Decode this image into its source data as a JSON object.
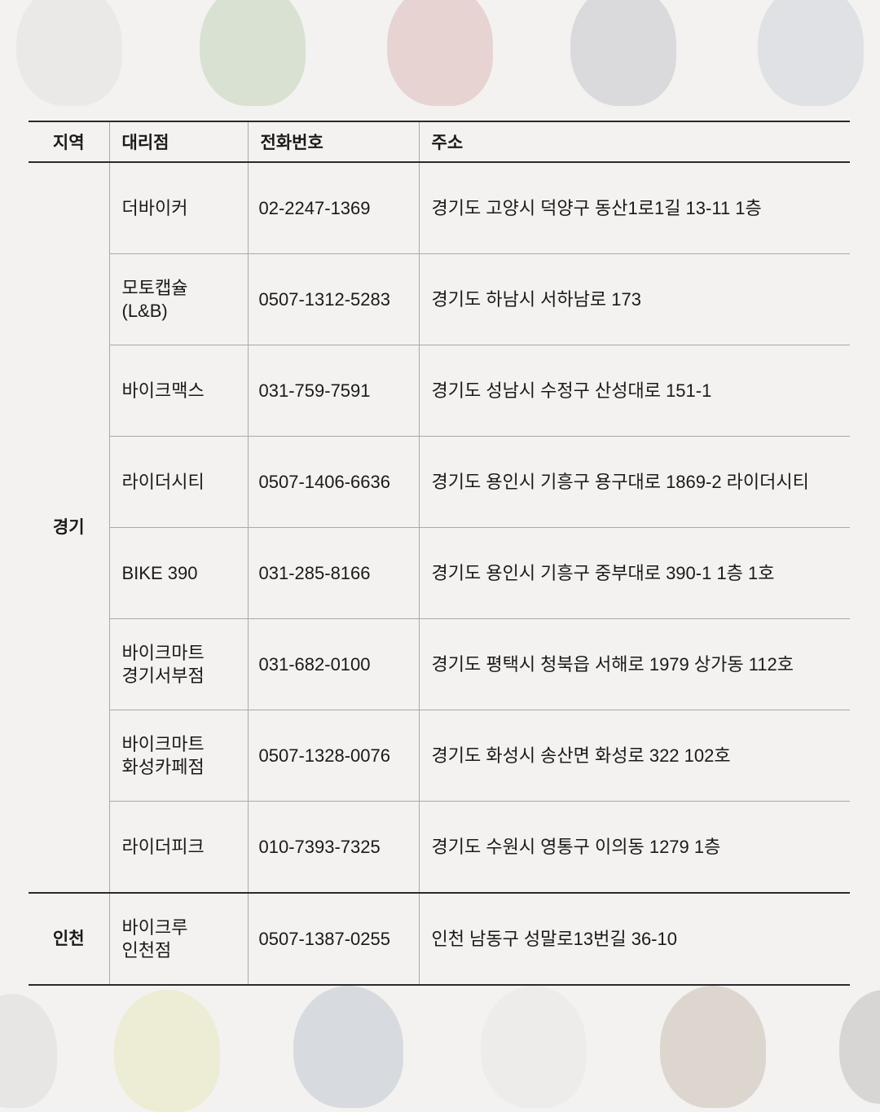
{
  "header": {
    "region": "지역",
    "dealer": "대리점",
    "phone": "전화번호",
    "address": "주소"
  },
  "groups": [
    {
      "region": "경기",
      "rows": [
        {
          "dealer": "더바이커",
          "phone": "02-2247-1369",
          "address": "경기도 고양시 덕양구 동산1로1길 13-11 1층"
        },
        {
          "dealer": "모토캡슐\n(L&B)",
          "phone": "0507-1312-5283",
          "address": "경기도 하남시 서하남로 173"
        },
        {
          "dealer": "바이크맥스",
          "phone": "031-759-7591",
          "address": "경기도 성남시 수정구 산성대로 151-1"
        },
        {
          "dealer": "라이더시티",
          "phone": "0507-1406-6636",
          "address": "경기도 용인시 기흥구 용구대로 1869-2 라이더시티"
        },
        {
          "dealer": "BIKE 390",
          "phone": "031-285-8166",
          "address": "경기도 용인시 기흥구 중부대로 390-1 1층 1호"
        },
        {
          "dealer": "바이크마트\n경기서부점",
          "phone": "031-682-0100",
          "address": "경기도 평택시 청북읍 서해로 1979 상가동 112호"
        },
        {
          "dealer": "바이크마트\n화성카페점",
          "phone": "0507-1328-0076",
          "address": "경기도 화성시 송산면 화성로 322 102호"
        },
        {
          "dealer": "라이더피크",
          "phone": "010-7393-7325",
          "address": "경기도 수원시 영통구 이의동 1279 1층"
        }
      ]
    },
    {
      "region": "인천",
      "rows": [
        {
          "dealer": "바이크루\n인천점",
          "phone": "0507-1387-0255",
          "address": "인천 남동구 성말로13번길 36-10"
        }
      ]
    }
  ]
}
